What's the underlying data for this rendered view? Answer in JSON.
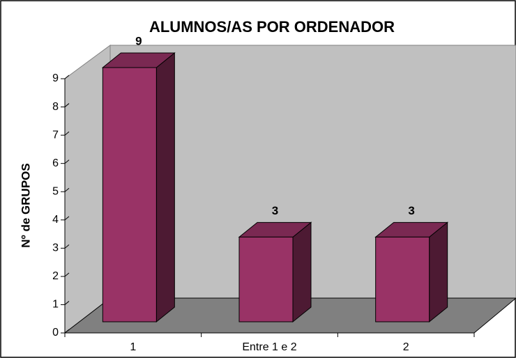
{
  "chart_data": {
    "type": "bar",
    "title": "ALUMNOS/AS POR ORDENADOR",
    "y_label": "Nº de GRUPOS",
    "categories": [
      "1",
      "Entre 1 e 2",
      "2"
    ],
    "values": [
      9,
      3,
      3
    ],
    "color": "#993366",
    "ylim": [
      0,
      9
    ],
    "yticks": [
      0,
      1,
      2,
      3,
      4,
      5,
      6,
      7,
      8,
      9
    ],
    "grid": false
  }
}
